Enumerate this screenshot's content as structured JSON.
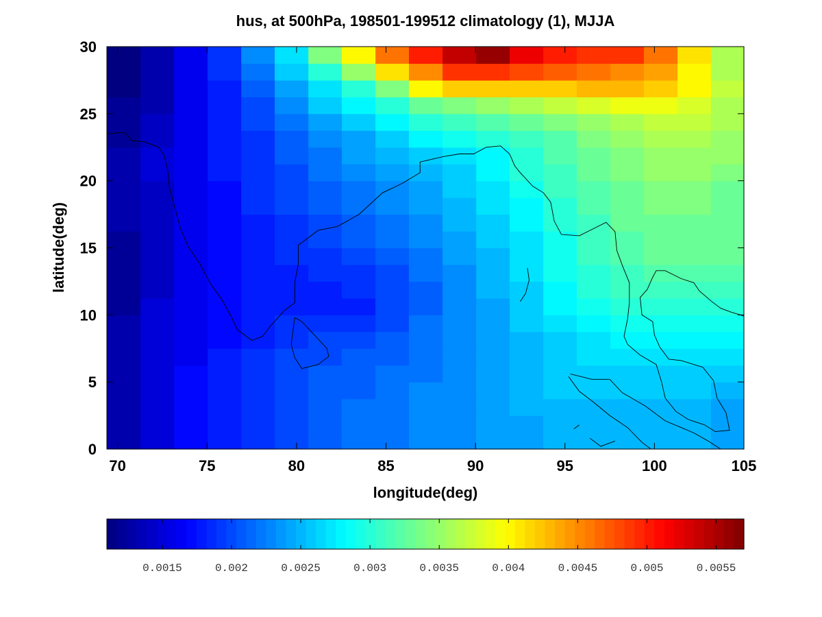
{
  "chart_data": {
    "type": "heatmap",
    "title": "hus, at 500hPa, 198501-199512 climatology (1), MJJA",
    "xlabel": "longitude(deg)",
    "ylabel": "latitude(deg)",
    "xlim": [
      69.4,
      105.0
    ],
    "ylim": [
      0,
      30
    ],
    "x_ticks": [
      70,
      75,
      80,
      85,
      90,
      95,
      100,
      105
    ],
    "y_ticks": [
      0,
      5,
      10,
      15,
      20,
      25,
      30
    ],
    "x_tick_labels": [
      "70",
      "75",
      "80",
      "85",
      "90",
      "95",
      "100",
      "105"
    ],
    "y_tick_labels": [
      "0",
      "5",
      "10",
      "15",
      "20",
      "25",
      "30"
    ],
    "grid": false,
    "colormap": "jet",
    "colorbar": {
      "orientation": "horizontal",
      "placement": "bottom",
      "vmin": 0.0011,
      "vmax": 0.0057,
      "ticks": [
        0.0015,
        0.002,
        0.0025,
        0.003,
        0.0035,
        0.004,
        0.0045,
        0.005,
        0.0055
      ],
      "tick_labels": [
        "0.0015",
        "0.002",
        "0.0025",
        "0.003",
        "0.0035",
        "0.004",
        "0.0045",
        "0.005",
        "0.0055"
      ]
    },
    "cell_lon_edges": [
      69.4,
      71.28,
      73.16,
      75.03,
      76.91,
      78.78,
      80.66,
      82.53,
      84.41,
      86.28,
      88.16,
      90.04,
      91.91,
      93.79,
      95.66,
      97.54,
      99.41,
      101.29,
      103.16,
      105.0
    ],
    "cell_lat_edges": [
      0,
      1.25,
      2.5,
      3.75,
      5,
      6.25,
      7.5,
      8.75,
      10,
      11.25,
      12.5,
      13.75,
      15,
      16.25,
      17.5,
      18.75,
      20,
      21.25,
      22.5,
      23.75,
      25,
      26.25,
      27.5,
      28.75,
      30
    ],
    "values": [
      [
        0.0013,
        0.0015,
        0.0017,
        0.0018,
        0.0019,
        0.002,
        0.0021,
        0.0022,
        0.0022,
        0.0023,
        0.0023,
        0.0024,
        0.0024,
        0.0025,
        0.0025,
        0.0025,
        0.0025,
        0.0025,
        0.0024
      ],
      [
        0.0013,
        0.0015,
        0.0017,
        0.0018,
        0.0019,
        0.002,
        0.0021,
        0.0022,
        0.0022,
        0.0023,
        0.0023,
        0.0024,
        0.0024,
        0.0025,
        0.0025,
        0.0025,
        0.0025,
        0.0025,
        0.0024
      ],
      [
        0.0013,
        0.0015,
        0.0017,
        0.0018,
        0.0019,
        0.002,
        0.0021,
        0.0022,
        0.0022,
        0.0023,
        0.0023,
        0.0024,
        0.0025,
        0.0025,
        0.0025,
        0.0025,
        0.0025,
        0.0025,
        0.0024
      ],
      [
        0.0013,
        0.0015,
        0.0017,
        0.0018,
        0.0019,
        0.002,
        0.0021,
        0.0021,
        0.0022,
        0.0023,
        0.0023,
        0.0024,
        0.0025,
        0.0026,
        0.0026,
        0.0026,
        0.0026,
        0.0026,
        0.0025
      ],
      [
        0.0013,
        0.0015,
        0.0017,
        0.0018,
        0.0019,
        0.002,
        0.0021,
        0.0021,
        0.0022,
        0.0022,
        0.0023,
        0.0024,
        0.0025,
        0.0026,
        0.0026,
        0.0026,
        0.0026,
        0.0026,
        0.0026
      ],
      [
        0.0013,
        0.0015,
        0.0016,
        0.0018,
        0.0019,
        0.002,
        0.002,
        0.0021,
        0.0021,
        0.0022,
        0.0023,
        0.0024,
        0.0025,
        0.0026,
        0.0027,
        0.0027,
        0.0027,
        0.0027,
        0.0027
      ],
      [
        0.0013,
        0.0015,
        0.0016,
        0.0017,
        0.0018,
        0.0019,
        0.002,
        0.002,
        0.0021,
        0.0022,
        0.0023,
        0.0024,
        0.0025,
        0.0026,
        0.0027,
        0.0028,
        0.0028,
        0.0028,
        0.0028
      ],
      [
        0.0013,
        0.0015,
        0.0016,
        0.0017,
        0.0018,
        0.0019,
        0.0019,
        0.0019,
        0.002,
        0.0022,
        0.0023,
        0.0024,
        0.0026,
        0.0027,
        0.0028,
        0.0029,
        0.0029,
        0.0029,
        0.0029
      ],
      [
        0.0012,
        0.0015,
        0.0016,
        0.0017,
        0.0018,
        0.0018,
        0.0018,
        0.0018,
        0.002,
        0.0021,
        0.0023,
        0.0024,
        0.0026,
        0.0028,
        0.0029,
        0.003,
        0.003,
        0.003,
        0.003
      ],
      [
        0.0012,
        0.0014,
        0.0016,
        0.0017,
        0.0018,
        0.0018,
        0.0018,
        0.0019,
        0.002,
        0.0021,
        0.0023,
        0.0025,
        0.0026,
        0.0028,
        0.003,
        0.0031,
        0.0031,
        0.0031,
        0.0031
      ],
      [
        0.0012,
        0.0014,
        0.0016,
        0.0017,
        0.0018,
        0.0018,
        0.0019,
        0.0019,
        0.002,
        0.0022,
        0.0023,
        0.0025,
        0.0027,
        0.0029,
        0.003,
        0.0031,
        0.0032,
        0.0032,
        0.0032
      ],
      [
        0.0012,
        0.0014,
        0.0016,
        0.0017,
        0.0018,
        0.0019,
        0.0019,
        0.002,
        0.0021,
        0.0022,
        0.0024,
        0.0025,
        0.0027,
        0.0029,
        0.0031,
        0.0032,
        0.0033,
        0.0033,
        0.0033
      ],
      [
        0.0012,
        0.0014,
        0.0016,
        0.0017,
        0.0018,
        0.0019,
        0.002,
        0.0021,
        0.0022,
        0.0023,
        0.0024,
        0.0026,
        0.0027,
        0.0029,
        0.0031,
        0.0032,
        0.0033,
        0.0033,
        0.0033
      ],
      [
        0.0013,
        0.0014,
        0.0016,
        0.0017,
        0.0018,
        0.0019,
        0.002,
        0.0021,
        0.0022,
        0.0023,
        0.0025,
        0.0026,
        0.0028,
        0.003,
        0.0031,
        0.0033,
        0.0033,
        0.0033,
        0.0033
      ],
      [
        0.0013,
        0.0014,
        0.0016,
        0.0017,
        0.0019,
        0.002,
        0.0021,
        0.0022,
        0.0023,
        0.0024,
        0.0025,
        0.0027,
        0.0028,
        0.003,
        0.0032,
        0.0033,
        0.0034,
        0.0034,
        0.0033
      ],
      [
        0.0013,
        0.0014,
        0.0016,
        0.0017,
        0.0019,
        0.002,
        0.0021,
        0.0022,
        0.0023,
        0.0024,
        0.0026,
        0.0027,
        0.0029,
        0.0031,
        0.0032,
        0.0033,
        0.0034,
        0.0034,
        0.0033
      ],
      [
        0.0013,
        0.0015,
        0.0016,
        0.0018,
        0.0019,
        0.002,
        0.0022,
        0.0023,
        0.0024,
        0.0025,
        0.0026,
        0.0028,
        0.003,
        0.0031,
        0.0033,
        0.0034,
        0.0035,
        0.0035,
        0.0034
      ],
      [
        0.0013,
        0.0015,
        0.0016,
        0.0018,
        0.0019,
        0.0021,
        0.0022,
        0.0024,
        0.0025,
        0.0026,
        0.0027,
        0.0028,
        0.003,
        0.0032,
        0.0033,
        0.0034,
        0.0035,
        0.0035,
        0.0035
      ],
      [
        0.0012,
        0.0014,
        0.0016,
        0.0018,
        0.0019,
        0.0021,
        0.0023,
        0.0024,
        0.0026,
        0.0028,
        0.0029,
        0.003,
        0.0031,
        0.0032,
        0.0034,
        0.0035,
        0.0036,
        0.0036,
        0.0035
      ],
      [
        0.0012,
        0.0014,
        0.0016,
        0.0018,
        0.002,
        0.0022,
        0.0024,
        0.0026,
        0.0028,
        0.003,
        0.0031,
        0.0032,
        0.0033,
        0.0034,
        0.0035,
        0.0036,
        0.0037,
        0.0037,
        0.0036
      ],
      [
        0.0012,
        0.0013,
        0.0016,
        0.0018,
        0.002,
        0.0023,
        0.0026,
        0.0028,
        0.003,
        0.0033,
        0.0034,
        0.0035,
        0.0036,
        0.0037,
        0.0038,
        0.0039,
        0.0039,
        0.0038,
        0.0036
      ],
      [
        0.0011,
        0.0013,
        0.0016,
        0.0018,
        0.0021,
        0.0024,
        0.0027,
        0.003,
        0.0034,
        0.004,
        0.0042,
        0.0042,
        0.0042,
        0.0042,
        0.0043,
        0.0043,
        0.0042,
        0.004,
        0.0037
      ],
      [
        0.0011,
        0.0013,
        0.0016,
        0.0019,
        0.0022,
        0.0026,
        0.003,
        0.0035,
        0.0041,
        0.0045,
        0.0049,
        0.0049,
        0.0048,
        0.0047,
        0.0046,
        0.0045,
        0.0044,
        0.004,
        0.0036
      ],
      [
        0.0011,
        0.0013,
        0.0016,
        0.0019,
        0.0023,
        0.0027,
        0.0034,
        0.004,
        0.0046,
        0.005,
        0.0054,
        0.0056,
        0.0052,
        0.005,
        0.0049,
        0.0049,
        0.0046,
        0.0041,
        0.0036
      ]
    ]
  }
}
